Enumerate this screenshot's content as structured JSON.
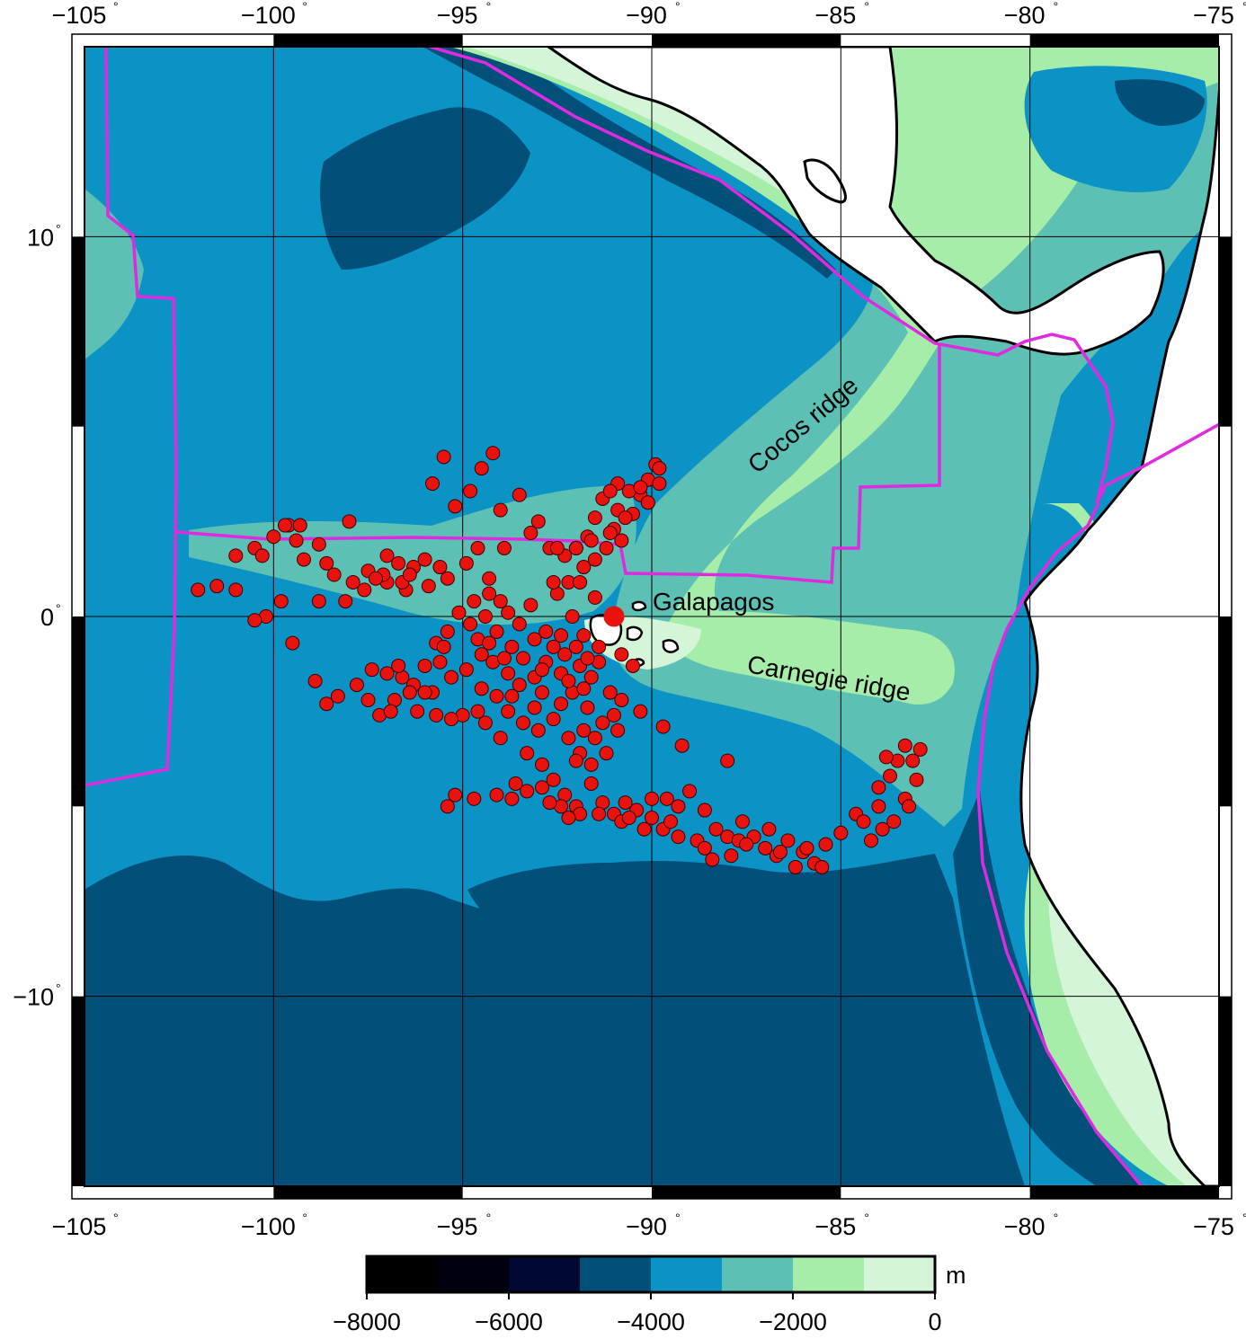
{
  "map": {
    "lon_min": -105,
    "lon_max": -75,
    "lat_min": -15,
    "lat_max": 15,
    "lon_ticks": [
      "−105",
      "−100",
      "−95",
      "−90",
      "−85",
      "−80",
      "−75"
    ],
    "lat_ticks": [
      "10",
      "0",
      "−10"
    ],
    "degree_symbol": "°",
    "labels": {
      "galapagos": "Galapagos",
      "cocos": "Cocos ridge",
      "carnegie": "Carnegie ridge"
    },
    "colors": {
      "bathy_shallowest": "#d4f5d8",
      "bathy_shelf": "#a5eda8",
      "bathy_slope": "#5cc0b5",
      "bathy_deep": "#0a93c4",
      "bathy_abyss": "#024f7a",
      "plate_boundary": "#e02ae0",
      "events": "#e8120e",
      "land": "#ffffff"
    }
  },
  "colorbar": {
    "unit": "m",
    "ticks": [
      "−8000",
      "−6000",
      "−4000",
      "−2000",
      "0"
    ],
    "bins": [
      {
        "from": -8000,
        "to": -7000,
        "color": "#000000"
      },
      {
        "from": -7000,
        "to": -6000,
        "color": "#00000e"
      },
      {
        "from": -6000,
        "to": -5000,
        "color": "#000833"
      },
      {
        "from": -5000,
        "to": -4000,
        "color": "#024f7a"
      },
      {
        "from": -4000,
        "to": -3000,
        "color": "#0a93c4"
      },
      {
        "from": -3000,
        "to": -2000,
        "color": "#5cc0b5"
      },
      {
        "from": -2000,
        "to": -1000,
        "color": "#a5eda8"
      },
      {
        "from": -1000,
        "to": 0,
        "color": "#d4f5d8"
      }
    ]
  },
  "galapagos_marker": {
    "lon": -91,
    "lat": 0
  },
  "events": [
    [
      -93.0,
      2.5
    ],
    [
      -93.5,
      3.2
    ],
    [
      -94.2,
      4.3
    ],
    [
      -94.5,
      3.9
    ],
    [
      -94.8,
      3.3
    ],
    [
      -95.2,
      2.9
    ],
    [
      -95.5,
      4.2
    ],
    [
      -95.8,
      3.5
    ],
    [
      -94.0,
      2.8
    ],
    [
      -93.2,
      2.2
    ],
    [
      -92.7,
      1.8
    ],
    [
      -92.3,
      1.6
    ],
    [
      -92.0,
      1.8
    ],
    [
      -91.7,
      2.1
    ],
    [
      -91.5,
      2.6
    ],
    [
      -91.3,
      3.1
    ],
    [
      -91.0,
      2.3
    ],
    [
      -90.8,
      2.0
    ],
    [
      -90.5,
      2.7
    ],
    [
      -90.3,
      3.2
    ],
    [
      -90.1,
      3.6
    ],
    [
      -89.9,
      4.0
    ],
    [
      -89.8,
      3.5
    ],
    [
      -90.1,
      3.0
    ],
    [
      -91.2,
      1.8
    ],
    [
      -91.8,
      1.3
    ],
    [
      -92.2,
      0.9
    ],
    [
      -92.5,
      0.6
    ],
    [
      -93.2,
      0.3
    ],
    [
      -93.8,
      0.1
    ],
    [
      -94.4,
      0.0
    ],
    [
      -94.8,
      -0.2
    ],
    [
      -95.1,
      0.1
    ],
    [
      -95.4,
      -0.4
    ],
    [
      -95.7,
      -0.7
    ],
    [
      -96.0,
      -1.3
    ],
    [
      -96.3,
      -1.8
    ],
    [
      -96.8,
      -2.2
    ],
    [
      -97.2,
      -2.6
    ],
    [
      -96.6,
      -1.6
    ],
    [
      -96.2,
      -2.5
    ],
    [
      -95.8,
      -2.0
    ],
    [
      -95.3,
      -1.6
    ],
    [
      -94.9,
      -1.4
    ],
    [
      -94.5,
      -1.9
    ],
    [
      -94.1,
      -2.1
    ],
    [
      -93.8,
      -2.5
    ],
    [
      -93.4,
      -2.8
    ],
    [
      -93.0,
      -3.0
    ],
    [
      -92.6,
      -2.7
    ],
    [
      -92.2,
      -3.2
    ],
    [
      -91.9,
      -3.6
    ],
    [
      -91.6,
      -3.9
    ],
    [
      -91.3,
      -2.8
    ],
    [
      -91.7,
      -2.4
    ],
    [
      -92.1,
      -2.0
    ],
    [
      -92.4,
      -1.5
    ],
    [
      -92.8,
      -1.2
    ],
    [
      -93.1,
      -1.6
    ],
    [
      -93.5,
      -1.8
    ],
    [
      -94.2,
      -1.2
    ],
    [
      -94.6,
      -0.6
    ],
    [
      -94.1,
      -0.4
    ],
    [
      -93.7,
      -0.8
    ],
    [
      -92.3,
      -1.0
    ],
    [
      -92.0,
      -0.8
    ],
    [
      -91.9,
      -1.3
    ],
    [
      -91.6,
      -1.6
    ],
    [
      -92.6,
      -4.3
    ],
    [
      -92.3,
      -4.7
    ],
    [
      -92.0,
      -5.0
    ],
    [
      -91.6,
      -4.4
    ],
    [
      -91.3,
      -4.9
    ],
    [
      -91.0,
      -5.2
    ],
    [
      -90.7,
      -4.9
    ],
    [
      -90.4,
      -5.1
    ],
    [
      -90.0,
      -5.3
    ],
    [
      -89.6,
      -4.8
    ],
    [
      -89.3,
      -5.0
    ],
    [
      -89.0,
      -4.6
    ],
    [
      -88.6,
      -5.1
    ],
    [
      -88.3,
      -5.6
    ],
    [
      -88.0,
      -5.8
    ],
    [
      -87.6,
      -5.4
    ],
    [
      -87.3,
      -5.8
    ],
    [
      -87.0,
      -6.1
    ],
    [
      -86.7,
      -6.3
    ],
    [
      -86.4,
      -5.9
    ],
    [
      -86.0,
      -6.2
    ],
    [
      -85.7,
      -6.5
    ],
    [
      -85.4,
      -6.0
    ],
    [
      -85.0,
      -5.7
    ],
    [
      -84.6,
      -5.2
    ],
    [
      -84.2,
      -5.9
    ],
    [
      -84.0,
      -5.0
    ],
    [
      -83.7,
      -4.2
    ],
    [
      -83.5,
      -3.8
    ],
    [
      -83.3,
      -3.4
    ],
    [
      -83.1,
      -3.8
    ],
    [
      -83.0,
      -4.3
    ],
    [
      -83.3,
      -4.8
    ],
    [
      -83.6,
      -5.4
    ],
    [
      -88.8,
      -5.9
    ],
    [
      -89.3,
      -5.8
    ],
    [
      -89.7,
      -5.6
    ],
    [
      -90.2,
      -5.6
    ],
    [
      -90.8,
      -5.4
    ],
    [
      -91.4,
      -5.2
    ],
    [
      -91.9,
      -5.2
    ],
    [
      -92.4,
      -5.0
    ],
    [
      -92.9,
      -4.5
    ],
    [
      -93.3,
      -4.6
    ],
    [
      -93.7,
      -4.8
    ],
    [
      -94.1,
      -4.7
    ],
    [
      -94.7,
      -4.8
    ],
    [
      -95.2,
      -4.7
    ],
    [
      -95.4,
      -5.0
    ],
    [
      -88.0,
      -3.8
    ],
    [
      -87.7,
      -5.9
    ],
    [
      -86.9,
      -5.6
    ],
    [
      -87.9,
      -6.3
    ],
    [
      -88.4,
      -6.4
    ],
    [
      -86.2,
      -6.6
    ],
    [
      -85.5,
      -6.6
    ],
    [
      -95.0,
      -2.6
    ],
    [
      -94.0,
      -3.2
    ],
    [
      -93.3,
      -3.6
    ],
    [
      -92.9,
      -3.9
    ],
    [
      -91.5,
      -3.2
    ],
    [
      -91.2,
      -3.6
    ],
    [
      -90.9,
      -3.0
    ],
    [
      -91.1,
      -2.0
    ],
    [
      -91.4,
      -1.2
    ],
    [
      -90.8,
      -1.0
    ],
    [
      -90.5,
      -1.3
    ],
    [
      -97.8,
      -1.8
    ],
    [
      -97.5,
      -2.2
    ],
    [
      -98.3,
      -2.1
    ],
    [
      -98.6,
      -2.3
    ],
    [
      -98.9,
      -1.7
    ],
    [
      -99.5,
      -0.7
    ],
    [
      -100.2,
      0.0
    ],
    [
      -100.5,
      -0.1
    ],
    [
      -101.0,
      0.7
    ],
    [
      -101.5,
      0.8
    ],
    [
      -102.0,
      0.7
    ],
    [
      -101.0,
      1.6
    ],
    [
      -100.5,
      1.8
    ],
    [
      -100.0,
      2.1
    ],
    [
      -99.6,
      2.4
    ],
    [
      -99.3,
      2.4
    ],
    [
      -98.8,
      1.9
    ],
    [
      -98.6,
      1.4
    ],
    [
      -98.1,
      0.4
    ],
    [
      -97.5,
      1.2
    ],
    [
      -97.0,
      0.9
    ],
    [
      -96.5,
      0.7
    ],
    [
      -95.9,
      0.8
    ],
    [
      -95.4,
      1.0
    ],
    [
      -94.9,
      1.4
    ],
    [
      -94.3,
      0.6
    ],
    [
      -93.9,
      1.8
    ],
    [
      -96.0,
      1.5
    ],
    [
      -96.3,
      1.3
    ],
    [
      -96.7,
      1.4
    ],
    [
      -97.1,
      1.1
    ],
    [
      -97.6,
      0.7
    ],
    [
      -98.8,
      0.4
    ],
    [
      -99.8,
      0.4
    ],
    [
      -98.0,
      2.5
    ],
    [
      -94.6,
      1.8
    ],
    [
      -94.0,
      0.4
    ],
    [
      -93.5,
      -0.2
    ],
    [
      -92.8,
      -0.4
    ],
    [
      -92.1,
      0.0
    ],
    [
      -91.8,
      -0.5
    ],
    [
      -91.5,
      0.5
    ],
    [
      -91.9,
      0.9
    ],
    [
      -90.9,
      3.5
    ],
    [
      -91.1,
      3.3
    ],
    [
      -90.6,
      3.3
    ],
    [
      -94.3,
      -0.7
    ],
    [
      -93.9,
      -1.1
    ],
    [
      -93.4,
      -1.1
    ],
    [
      -92.9,
      -2.0
    ],
    [
      -93.8,
      -1.5
    ],
    [
      -94.5,
      -1.0
    ],
    [
      -95.6,
      -1.2
    ],
    [
      -96.0,
      -2.0
    ],
    [
      -96.4,
      -2.0
    ],
    [
      -95.3,
      -2.7
    ],
    [
      -94.6,
      -2.5
    ],
    [
      -84.0,
      -4.5
    ],
    [
      -84.4,
      -5.4
    ],
    [
      -83.9,
      -5.6
    ],
    [
      -83.2,
      -5.0
    ],
    [
      -83.8,
      -3.7
    ],
    [
      -82.9,
      -3.5
    ],
    [
      -86.6,
      -6.2
    ],
    [
      -85.9,
      -6.1
    ],
    [
      -87.5,
      -6.0
    ],
    [
      -88.6,
      -6.1
    ],
    [
      -89.5,
      -5.4
    ],
    [
      -90.0,
      -4.8
    ],
    [
      -90.6,
      -5.3
    ],
    [
      -92.2,
      -5.3
    ],
    [
      -93.6,
      -4.4
    ],
    [
      -92.7,
      -4.9
    ],
    [
      -92.0,
      -3.8
    ],
    [
      -91.8,
      -3.0
    ],
    [
      -91.0,
      -2.6
    ],
    [
      -90.8,
      -2.2
    ],
    [
      -92.4,
      -2.3
    ],
    [
      -93.1,
      -2.4
    ],
    [
      -93.7,
      -2.1
    ],
    [
      -94.4,
      -2.8
    ],
    [
      -95.7,
      -2.6
    ],
    [
      -96.9,
      -2.5
    ],
    [
      -97.4,
      -1.4
    ],
    [
      -97.0,
      -1.5
    ],
    [
      -96.7,
      -1.3
    ],
    [
      -95.5,
      -0.8
    ],
    [
      -94.7,
      0.4
    ],
    [
      -94.3,
      1.0
    ],
    [
      -95.6,
      1.3
    ],
    [
      -96.6,
      0.9
    ],
    [
      -96.4,
      1.1
    ],
    [
      -97.0,
      1.6
    ],
    [
      -97.3,
      1.0
    ],
    [
      -97.9,
      0.9
    ],
    [
      -98.4,
      1.1
    ],
    [
      -100.3,
      1.6
    ],
    [
      -99.2,
      1.5
    ],
    [
      -99.4,
      2.0
    ],
    [
      -99.7,
      2.4
    ],
    [
      -92.6,
      0.9
    ],
    [
      -92.0,
      1.8
    ],
    [
      -92.5,
      1.8
    ],
    [
      -91.5,
      1.5
    ],
    [
      -91.6,
      2.0
    ],
    [
      -91.1,
      2.2
    ],
    [
      -90.9,
      2.8
    ],
    [
      -90.3,
      3.4
    ],
    [
      -90.7,
      2.6
    ],
    [
      -89.8,
      3.9
    ],
    [
      -93.1,
      -0.6
    ],
    [
      -92.6,
      -0.8
    ],
    [
      -92.9,
      -1.4
    ],
    [
      -92.2,
      -1.7
    ],
    [
      -91.8,
      -1.9
    ],
    [
      -91.4,
      -0.8
    ],
    [
      -91.7,
      -1.1
    ],
    [
      -92.4,
      -0.5
    ],
    [
      -90.3,
      -2.5
    ],
    [
      -89.7,
      -2.9
    ],
    [
      -89.2,
      -3.4
    ]
  ]
}
